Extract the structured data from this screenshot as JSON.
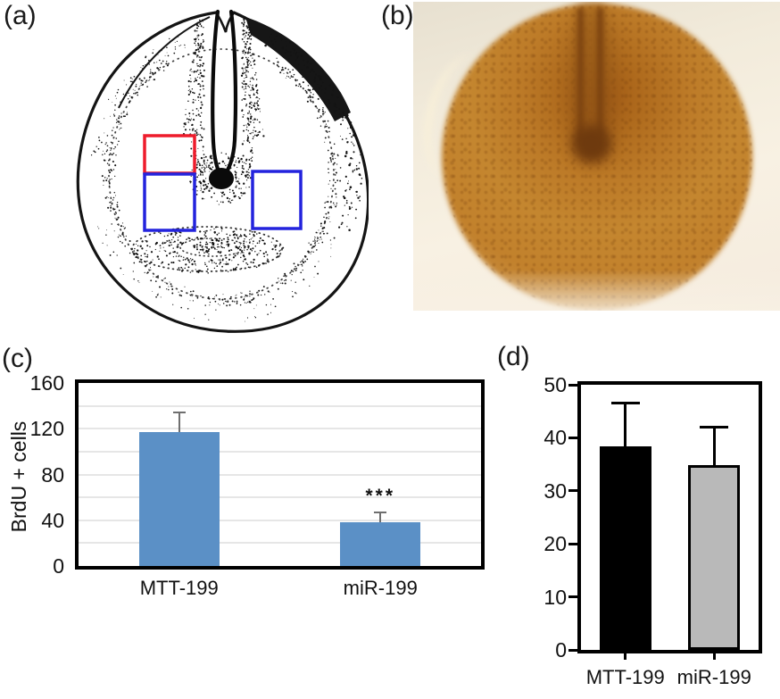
{
  "figure": {
    "background": "#ffffff"
  },
  "panels": {
    "a": {
      "label": "(a)",
      "roi_red_color": "#ee1c2c",
      "roi_blue_color": "#2323dd",
      "ink_color": "#141414"
    },
    "b": {
      "label": "(b)"
    },
    "c": {
      "label": "(c)"
    },
    "d": {
      "label": "(d)"
    }
  },
  "chart_data": [
    {
      "id": "c",
      "type": "bar",
      "title": "",
      "categories": [
        "MTT-199",
        "miR-199"
      ],
      "values": [
        117,
        38
      ],
      "errors_plus": [
        17,
        9
      ],
      "ylabel": "BrdU + cells",
      "xlabel": "",
      "ylim": [
        0,
        160
      ],
      "yticks": [
        0,
        40,
        80,
        120,
        160
      ],
      "grid_step": 20,
      "grid_color": "#e6e6e6",
      "grid": true,
      "legend": null,
      "bar_color": "#5b90c6",
      "bar_width_frac": 0.4,
      "y_tick_marks": false,
      "x_tick_marks": false,
      "error_style": {
        "color": "#6f6f6f",
        "stem_width": 2,
        "cap_width": 14,
        "cap_thick": 2
      },
      "annotations": [
        {
          "index": 1,
          "text": "***"
        }
      ]
    },
    {
      "id": "d",
      "type": "bar",
      "title": "",
      "categories": [
        "MTT-199",
        "miR-199"
      ],
      "values": [
        38.4,
        34.8
      ],
      "errors_plus": [
        8.3,
        7.3
      ],
      "ylabel": "",
      "xlabel": "",
      "ylim": [
        0,
        50
      ],
      "yticks": [
        0,
        10,
        20,
        30,
        40,
        50
      ],
      "grid_step": 0,
      "grid": false,
      "legend": null,
      "bar_colors": [
        "#000000",
        "#b9b9b9"
      ],
      "bar_border": "#000000",
      "bar_width_frac": 0.58,
      "y_tick_marks": true,
      "x_tick_marks": true,
      "error_style": {
        "color": "#000000",
        "stem_width": 3,
        "cap_width": 32,
        "cap_thick": 3
      },
      "annotations": []
    }
  ]
}
